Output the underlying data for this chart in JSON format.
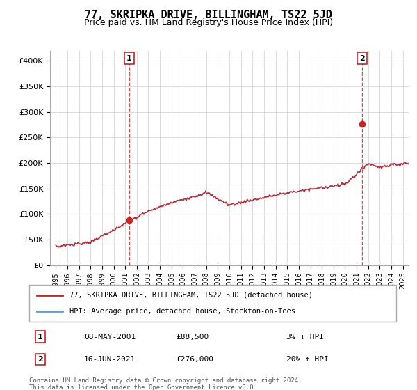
{
  "title": "77, SKRIPKA DRIVE, BILLINGHAM, TS22 5JD",
  "subtitle": "Price paid vs. HM Land Registry's House Price Index (HPI)",
  "ylim": [
    0,
    420000
  ],
  "yticks": [
    0,
    50000,
    100000,
    150000,
    200000,
    250000,
    300000,
    350000,
    400000
  ],
  "ytick_labels": [
    "£0",
    "£50K",
    "£100K",
    "£150K",
    "£200K",
    "£250K",
    "£300K",
    "£350K",
    "£400K"
  ],
  "hpi_color": "#6699cc",
  "price_color": "#cc2222",
  "marker1_date": 2001.35,
  "marker1_price": 88500,
  "marker2_date": 2021.46,
  "marker2_price": 276000,
  "legend_property_label": "77, SKRIPKA DRIVE, BILLINGHAM, TS22 5JD (detached house)",
  "legend_hpi_label": "HPI: Average price, detached house, Stockton-on-Tees",
  "table_row1": [
    "1",
    "08-MAY-2001",
    "£88,500",
    "3% ↓ HPI"
  ],
  "table_row2": [
    "2",
    "16-JUN-2021",
    "£276,000",
    "20% ↑ HPI"
  ],
  "footnote": "Contains HM Land Registry data © Crown copyright and database right 2024.\nThis data is licensed under the Open Government Licence v3.0.",
  "background_color": "#ffffff",
  "grid_color": "#dddddd"
}
